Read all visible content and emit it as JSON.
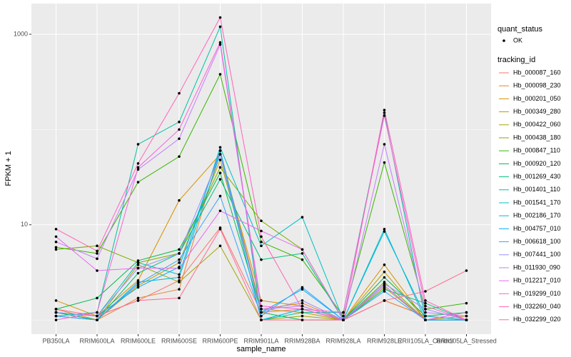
{
  "chart_data": {
    "type": "line",
    "x_label": "sample_name",
    "y_label": "FPKM + 1",
    "log_y": true,
    "grid": true,
    "ylim": [
      0.71,
      2100
    ],
    "yticks": [
      10,
      1000
    ],
    "y_minor_grid": [
      1,
      100
    ],
    "legend_position": "right",
    "point_legend_title": "quant_status",
    "point_legend_label": "OK",
    "point_color": "#000000",
    "legend_title": "tracking_id",
    "categories": [
      "PB350LA",
      "RRIM600LA",
      "RRIM600LE",
      "RRIM600SE",
      "RRIM600PE",
      "RRIM901LA",
      "RRIM928BA",
      "RRIM928LA",
      "RRIM928LE",
      "RRII105LA_Control",
      "RRII105LA_Stressed"
    ],
    "series": [
      {
        "name": "Hb_000087_160",
        "color": "#F8766D",
        "values": [
          1.2,
          1.1,
          1.6,
          2.6,
          9.3,
          1.2,
          1.3,
          1.0,
          1.6,
          1.1,
          1.0
        ]
      },
      {
        "name": "Hb_000098_230",
        "color": "#EA8331",
        "values": [
          1.3,
          1.0,
          1.7,
          2.1,
          60,
          1.3,
          1.5,
          1.0,
          1.6,
          1.1,
          1.0
        ]
      },
      {
        "name": "Hb_000201_050",
        "color": "#D89000",
        "values": [
          1.6,
          1.1,
          2.6,
          18,
          55,
          1.6,
          1.4,
          1.0,
          3.8,
          1.0,
          1.0
        ]
      },
      {
        "name": "Hb_000349_280",
        "color": "#C09B00",
        "values": [
          1.2,
          1.0,
          2.3,
          4,
          48,
          1.3,
          1.2,
          1.0,
          3.2,
          1.0,
          1.1
        ]
      },
      {
        "name": "Hb_000422_060",
        "color": "#A3A500",
        "values": [
          1.1,
          1.0,
          3.8,
          2.5,
          6,
          1.0,
          1.1,
          1.0,
          2.2,
          1.0,
          1.0
        ]
      },
      {
        "name": "Hb_000438_180",
        "color": "#7CAE00",
        "values": [
          5.5,
          6,
          4,
          5,
          40,
          11,
          5.5,
          1.0,
          2.5,
          1.0,
          1.0
        ]
      },
      {
        "name": "Hb_000847_110",
        "color": "#39B600",
        "values": [
          5.8,
          5,
          28,
          52,
          380,
          6.6,
          4.3,
          1.1,
          45,
          1.3,
          1.5
        ]
      },
      {
        "name": "Hb_000920_120",
        "color": "#00BB4E",
        "values": [
          1.3,
          1.7,
          4.2,
          5.5,
          35,
          1.2,
          1.0,
          1.0,
          2.8,
          1.1,
          1.2
        ]
      },
      {
        "name": "Hb_001269_430",
        "color": "#00BF7D",
        "values": [
          1.2,
          1.0,
          3.1,
          5,
          30,
          4.3,
          5,
          1.0,
          2.1,
          1.5,
          1.0
        ]
      },
      {
        "name": "Hb_001401_110",
        "color": "#00C1A3",
        "values": [
          1.1,
          1.2,
          70,
          120,
          1200,
          1.0,
          1.2,
          1.2,
          150,
          1.0,
          1.0
        ]
      },
      {
        "name": "Hb_001541_170",
        "color": "#00BFC4",
        "values": [
          1.2,
          1.1,
          4,
          3,
          65,
          6,
          12,
          1.0,
          9,
          1.0,
          1.0
        ]
      },
      {
        "name": "Hb_002186_170",
        "color": "#00BAE0",
        "values": [
          1.1,
          1.0,
          2.5,
          2.8,
          55,
          1.0,
          1.3,
          1.0,
          8.5,
          1.1,
          1.0
        ]
      },
      {
        "name": "Hb_004757_010",
        "color": "#00B0F6",
        "values": [
          1.2,
          1.1,
          2.2,
          3.6,
          60,
          1.2,
          2.1,
          1.0,
          2.3,
          1.0,
          1.0
        ]
      },
      {
        "name": "Hb_006618_100",
        "color": "#35A2FF",
        "values": [
          1.1,
          1.0,
          2.4,
          4.3,
          20,
          1.1,
          2.2,
          1.0,
          2.0,
          1.0,
          1.0
        ]
      },
      {
        "name": "Hb_007441_100",
        "color": "#9590FF",
        "values": [
          1.2,
          1.1,
          3.5,
          5,
          55,
          1.2,
          1.6,
          1.0,
          2.4,
          1.3,
          1.0
        ]
      },
      {
        "name": "Hb_011930_090",
        "color": "#C77CFF",
        "values": [
          6.6,
          4.4,
          38,
          80,
          780,
          1.3,
          1.4,
          1.0,
          70,
          1.2,
          1.1
        ]
      },
      {
        "name": "Hb_012217_010",
        "color": "#E76BF3",
        "values": [
          7.5,
          3.3,
          3.5,
          3.5,
          14,
          8.6,
          5.5,
          1.0,
          2.3,
          1.0,
          1.2
        ]
      },
      {
        "name": "Hb_019299_010",
        "color": "#FA62DB",
        "values": [
          1.0,
          1.2,
          40,
          100,
          820,
          1.4,
          1.3,
          1.2,
          140,
          1.4,
          1.0
        ]
      },
      {
        "name": "Hb_032260_040",
        "color": "#FF62BC",
        "values": [
          9,
          5.3,
          44,
          240,
          1500,
          7.5,
          1.3,
          1.0,
          160,
          1.6,
          1.0
        ]
      },
      {
        "name": "Hb_032299_020",
        "color": "#FF6C91",
        "values": [
          1.3,
          1.1,
          1.6,
          1.7,
          9,
          1.0,
          1.0,
          1.0,
          1.6,
          2.0,
          3.3
        ]
      }
    ]
  }
}
